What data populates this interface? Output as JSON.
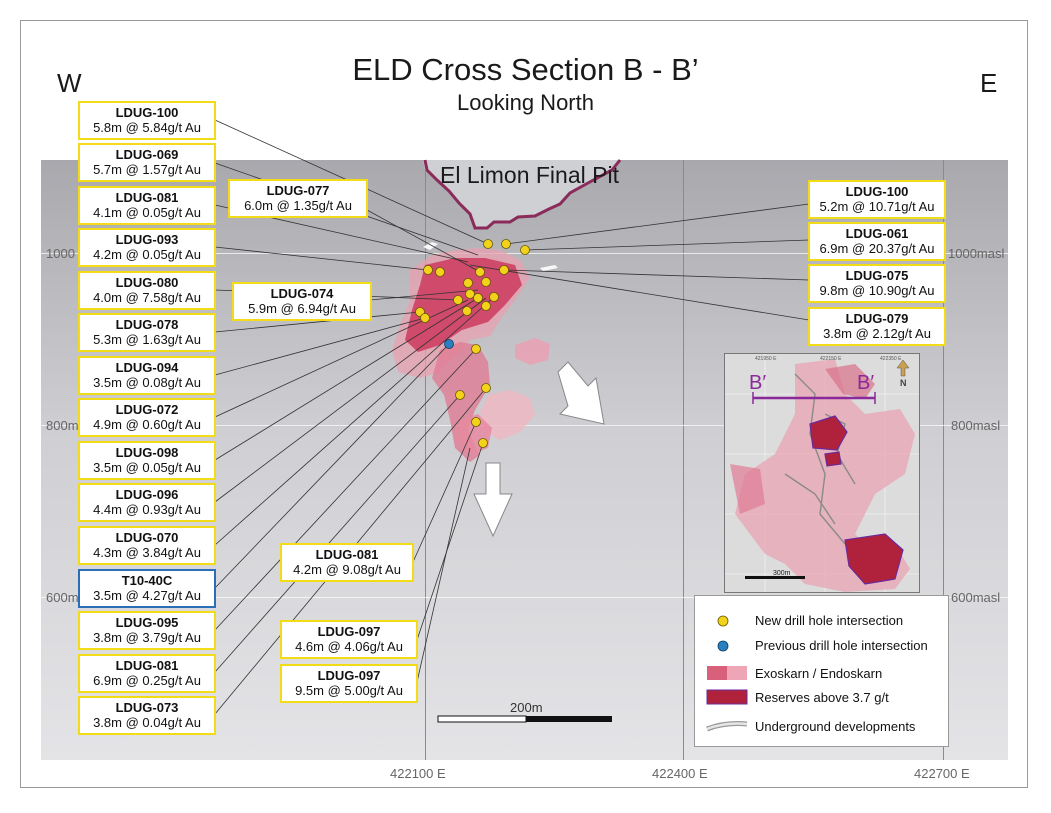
{
  "title": "ELD Cross Section B - B’",
  "subtitle": "Looking North",
  "direction_west": "W",
  "direction_east": "E",
  "pit_label": "El Limon Final Pit",
  "elevations": {
    "left": [
      "1000",
      "800m",
      "600m"
    ],
    "right": [
      "1000masl",
      "800masl",
      "600masl"
    ]
  },
  "eastings": [
    "422100 E",
    "422400 E",
    "422700 E"
  ],
  "scale_bar_label": "200m",
  "left_labels": [
    {
      "name": "LDUG-100",
      "value": "5.8m @ 5.84g/t Au"
    },
    {
      "name": "LDUG-069",
      "value": "5.7m @ 1.57g/t Au"
    },
    {
      "name": "LDUG-081",
      "value": "4.1m @ 0.05g/t Au"
    },
    {
      "name": "LDUG-093",
      "value": "4.2m @ 0.05g/t Au"
    },
    {
      "name": "LDUG-080",
      "value": "4.0m @ 7.58g/t Au"
    },
    {
      "name": "LDUG-078",
      "value": "5.3m @ 1.63g/t Au"
    },
    {
      "name": "LDUG-094",
      "value": "3.5m @ 0.08g/t Au"
    },
    {
      "name": "LDUG-072",
      "value": "4.9m @ 0.60g/t Au"
    },
    {
      "name": "LDUG-098",
      "value": "3.5m @ 0.05g/t Au"
    },
    {
      "name": "LDUG-096",
      "value": "4.4m @ 0.93g/t Au"
    },
    {
      "name": "LDUG-070",
      "value": "4.3m @ 3.84g/t Au"
    },
    {
      "name": "T10-40C",
      "value": "3.5m @ 4.27g/t Au",
      "style": "previous"
    },
    {
      "name": "LDUG-095",
      "value": "3.8m @ 3.79g/t Au"
    },
    {
      "name": "LDUG-081",
      "value": "6.9m @ 0.25g/t Au"
    },
    {
      "name": "LDUG-073",
      "value": "3.8m @ 0.04g/t Au"
    }
  ],
  "center_labels": [
    {
      "name": "LDUG-077",
      "value": "6.0m @ 1.35g/t Au"
    },
    {
      "name": "LDUG-074",
      "value": "5.9m @ 6.94g/t Au"
    },
    {
      "name": "LDUG-081",
      "value": "4.2m @ 9.08g/t Au"
    },
    {
      "name": "LDUG-097",
      "value": "4.6m @ 4.06g/t Au"
    },
    {
      "name": "LDUG-097",
      "value": "9.5m @ 5.00g/t Au"
    }
  ],
  "right_labels": [
    {
      "name": "LDUG-100",
      "value": "5.2m @ 10.71g/t Au"
    },
    {
      "name": "LDUG-061",
      "value": "6.9m @ 20.37g/t Au"
    },
    {
      "name": "LDUG-075",
      "value": "9.8m @ 10.90g/t Au"
    },
    {
      "name": "LDUG-079",
      "value": "3.8m @ 2.12g/t Au"
    }
  ],
  "legend": {
    "new_hole": "New drill hole intersection",
    "previous_hole": "Previous drill hole intersection",
    "skarn": "Exoskarn / Endoskarn",
    "reserves": "Reserves above 3.7 g/t",
    "underground": "Underground developments"
  },
  "inset": {
    "ticks": [
      "421950 E",
      "422150 E",
      "422350 E"
    ],
    "b_left": "B′",
    "b_right": "B′",
    "north": "N",
    "scale": "300m"
  },
  "colors": {
    "new_hole": "#f2d21a",
    "previous_hole": "#2a7fc1",
    "skarn": "#d9607a",
    "reserves": "#b0213c",
    "pit_outline": "#8a2b5a",
    "label_border": "#f2dc18",
    "previous_label_border": "#2a6fb6"
  }
}
